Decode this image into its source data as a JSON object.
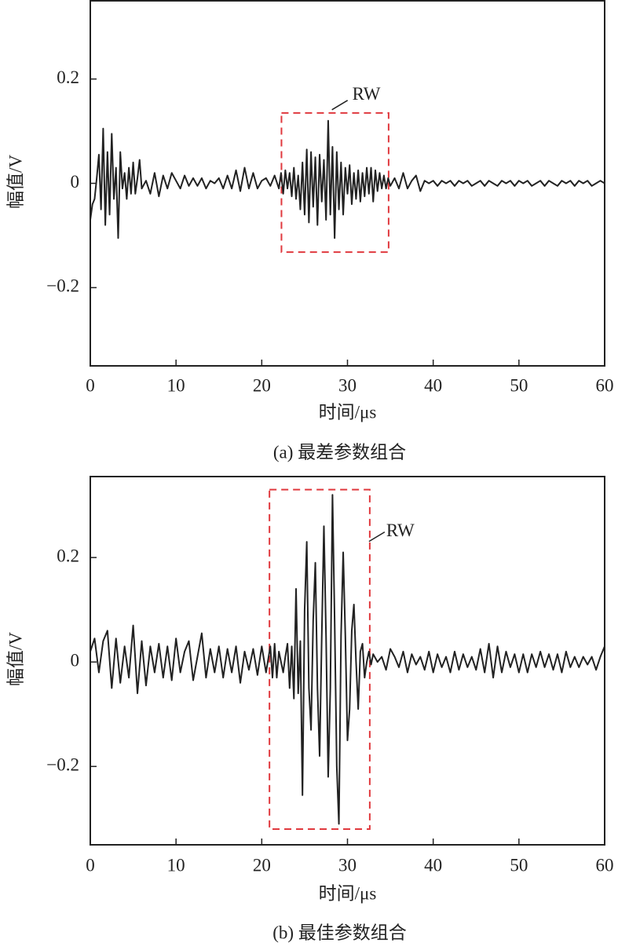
{
  "chart_data": [
    {
      "type": "line",
      "caption": "(a) 最差参数组合",
      "xlabel": "时间/μs",
      "ylabel": "幅值/V",
      "xlim": [
        0,
        60
      ],
      "xticks": [
        0,
        10,
        20,
        30,
        40,
        50,
        60
      ],
      "ylim": [
        -0.35,
        0.35
      ],
      "yticks": [
        {
          "value": -0.2,
          "label": "−0.2"
        },
        0,
        0.2
      ],
      "color": "#222222",
      "regions": [
        {
          "label": "RW",
          "color": "#e0393e",
          "xlim": [
            22.3,
            34.8
          ],
          "ylim": [
            -0.132,
            0.135
          ]
        }
      ],
      "x": [
        0,
        0.25,
        0.5,
        0.75,
        1,
        1.25,
        1.5,
        1.75,
        2,
        2.25,
        2.5,
        2.75,
        3,
        3.25,
        3.5,
        3.75,
        4,
        4.25,
        4.5,
        4.75,
        5,
        5.25,
        5.5,
        5.75,
        6,
        6.5,
        7,
        7.5,
        8,
        8.5,
        9,
        9.5,
        10,
        10.5,
        11,
        11.5,
        12,
        12.5,
        13,
        13.5,
        14,
        14.5,
        15,
        15.5,
        16,
        16.5,
        17,
        17.5,
        18,
        18.5,
        19,
        19.5,
        20,
        20.5,
        21,
        21.5,
        22,
        22.25,
        22.5,
        22.75,
        23,
        23.25,
        23.5,
        23.75,
        24,
        24.25,
        24.5,
        24.75,
        25,
        25.25,
        25.5,
        25.75,
        26,
        26.25,
        26.5,
        26.75,
        27,
        27.25,
        27.5,
        27.75,
        28,
        28.25,
        28.5,
        28.75,
        29,
        29.25,
        29.5,
        29.75,
        30,
        30.25,
        30.5,
        30.75,
        31,
        31.25,
        31.5,
        31.75,
        32,
        32.25,
        32.5,
        32.75,
        33,
        33.25,
        33.5,
        33.75,
        34,
        34.25,
        34.5,
        34.75,
        35,
        35.5,
        36,
        36.5,
        37,
        37.5,
        38,
        38.5,
        39,
        39.5,
        40,
        40.5,
        41,
        41.5,
        42,
        42.5,
        43,
        43.5,
        44,
        44.5,
        45,
        45.5,
        46,
        46.5,
        47,
        47.5,
        48,
        48.5,
        49,
        49.5,
        50,
        50.5,
        51,
        51.5,
        52,
        52.5,
        53,
        53.5,
        54,
        54.5,
        55,
        55.5,
        56,
        56.5,
        57,
        57.5,
        58,
        58.5,
        59,
        59.5,
        60
      ],
      "values": [
        -0.07,
        -0.04,
        -0.03,
        0.01,
        0.055,
        -0.05,
        0.105,
        -0.08,
        0.06,
        -0.06,
        0.095,
        -0.03,
        0.03,
        -0.105,
        0.06,
        -0.01,
        0.02,
        -0.03,
        0.03,
        -0.02,
        0.04,
        -0.02,
        0.01,
        0.045,
        -0.01,
        0.005,
        -0.02,
        0.02,
        -0.025,
        0.015,
        -0.01,
        0.02,
        0.005,
        -0.01,
        0.015,
        -0.005,
        0.01,
        -0.005,
        0.01,
        -0.01,
        0.005,
        0,
        0.01,
        -0.01,
        0.015,
        -0.01,
        0.025,
        -0.015,
        0.03,
        -0.01,
        0.02,
        -0.01,
        0.005,
        0.01,
        -0.005,
        0.015,
        -0.01,
        0.02,
        -0.02,
        0.025,
        -0.01,
        0.02,
        -0.025,
        0.03,
        -0.03,
        0.015,
        -0.05,
        0.04,
        -0.06,
        0.065,
        -0.075,
        0.06,
        -0.045,
        0.05,
        -0.08,
        0.055,
        -0.035,
        0.045,
        -0.07,
        0.12,
        -0.06,
        0.07,
        -0.105,
        0.06,
        -0.05,
        0.04,
        -0.06,
        0.03,
        -0.02,
        0.035,
        -0.04,
        0.02,
        -0.03,
        0.025,
        -0.035,
        0.02,
        -0.025,
        0.03,
        -0.02,
        0.03,
        -0.035,
        0.025,
        -0.015,
        0.02,
        -0.01,
        0.015,
        -0.01,
        0.01,
        -0.005,
        0.01,
        -0.01,
        0.02,
        -0.01,
        0.005,
        0.015,
        -0.015,
        0.005,
        0,
        0.005,
        -0.005,
        0.005,
        0,
        0.005,
        -0.005,
        0.005,
        0,
        0.005,
        -0.005,
        0,
        0.005,
        -0.005,
        0.005,
        0,
        -0.005,
        0.005,
        0,
        0.005,
        -0.005,
        0.005,
        0,
        0.005,
        -0.005,
        0,
        0.005,
        -0.005,
        0.005,
        0,
        -0.005,
        0.005,
        0,
        0.005,
        -0.005,
        0.005,
        0,
        0.005,
        -0.005,
        0,
        0.005,
        0
      ]
    },
    {
      "type": "line",
      "caption": "(b) 最佳参数组合",
      "xlabel": "时间/μs",
      "ylabel": "幅值/V",
      "xlim": [
        0,
        60
      ],
      "xticks": [
        0,
        10,
        20,
        30,
        40,
        50,
        60
      ],
      "ylim": [
        -0.35,
        0.355
      ],
      "yticks": [
        {
          "value": -0.2,
          "label": "−0.2"
        },
        0,
        0.2
      ],
      "color": "#222222",
      "regions": [
        {
          "label": "RW",
          "color": "#e0393e",
          "xlim": [
            20.9,
            32.6
          ],
          "ylim": [
            -0.32,
            0.33
          ]
        }
      ],
      "x": [
        0,
        0.5,
        1,
        1.5,
        2,
        2.5,
        3,
        3.5,
        4,
        4.5,
        5,
        5.5,
        6,
        6.5,
        7,
        7.5,
        8,
        8.5,
        9,
        9.5,
        10,
        10.5,
        11,
        11.5,
        12,
        12.5,
        13,
        13.5,
        14,
        14.5,
        15,
        15.5,
        16,
        16.5,
        17,
        17.5,
        18,
        18.5,
        19,
        19.5,
        20,
        20.5,
        21,
        21.25,
        21.5,
        21.75,
        22,
        22.25,
        22.5,
        22.75,
        23,
        23.25,
        23.5,
        23.75,
        24,
        24.25,
        24.5,
        24.75,
        25,
        25.25,
        25.5,
        25.75,
        26,
        26.25,
        26.5,
        26.75,
        27,
        27.25,
        27.5,
        27.75,
        28,
        28.25,
        28.5,
        28.75,
        29,
        29.25,
        29.5,
        29.75,
        30,
        30.25,
        30.5,
        30.75,
        31,
        31.25,
        31.5,
        31.75,
        32,
        32.25,
        32.5,
        32.75,
        33,
        33.5,
        34,
        34.5,
        35,
        35.5,
        36,
        36.5,
        37,
        37.5,
        38,
        38.5,
        39,
        39.5,
        40,
        40.5,
        41,
        41.5,
        42,
        42.5,
        43,
        43.5,
        44,
        44.5,
        45,
        45.5,
        46,
        46.5,
        47,
        47.5,
        48,
        48.5,
        49,
        49.5,
        50,
        50.5,
        51,
        51.5,
        52,
        52.5,
        53,
        53.5,
        54,
        54.5,
        55,
        55.5,
        56,
        56.5,
        57,
        57.5,
        58,
        58.5,
        59,
        59.5,
        60
      ],
      "values": [
        0.02,
        0.045,
        -0.02,
        0.04,
        0.06,
        -0.05,
        0.045,
        -0.04,
        0.03,
        -0.03,
        0.07,
        -0.06,
        0.04,
        -0.045,
        0.03,
        -0.02,
        0.035,
        -0.03,
        0.03,
        -0.035,
        0.045,
        -0.02,
        0.02,
        0.04,
        -0.035,
        0.01,
        0.055,
        -0.03,
        0.025,
        -0.02,
        0.03,
        -0.03,
        0.025,
        -0.02,
        0.03,
        -0.04,
        0.02,
        -0.015,
        0.025,
        -0.025,
        0.03,
        -0.02,
        0.03,
        -0.03,
        0.035,
        -0.03,
        0.02,
        0,
        -0.02,
        0.01,
        0.035,
        -0.05,
        0.03,
        -0.07,
        0.14,
        -0.06,
        0.04,
        -0.255,
        0.1,
        0.23,
        -0.05,
        -0.13,
        0.08,
        0.19,
        -0.05,
        -0.18,
        0.05,
        0.26,
        0.05,
        -0.22,
        -0.05,
        0.32,
        0.08,
        -0.2,
        -0.31,
        0.05,
        0.21,
        0.05,
        -0.15,
        -0.09,
        0.06,
        0.11,
        0,
        -0.09,
        0.02,
        0.035,
        -0.03,
        0,
        0.02,
        -0.005,
        0.015,
        0,
        0.01,
        -0.015,
        0.025,
        0.01,
        -0.01,
        0.02,
        -0.02,
        0.015,
        -0.005,
        0.01,
        -0.015,
        0.02,
        -0.02,
        0.015,
        -0.01,
        0.01,
        -0.02,
        0.02,
        -0.015,
        0.015,
        -0.01,
        0.01,
        -0.015,
        0.025,
        -0.02,
        0.035,
        -0.03,
        0.03,
        -0.02,
        0.02,
        -0.01,
        0.015,
        -0.02,
        0.015,
        -0.02,
        0.015,
        -0.01,
        0.02,
        -0.01,
        0.015,
        -0.015,
        0.015,
        -0.02,
        0.02,
        -0.01,
        0.01,
        -0.01,
        0.01,
        -0.005,
        0.01,
        -0.015,
        0.01,
        0.03
      ]
    }
  ]
}
